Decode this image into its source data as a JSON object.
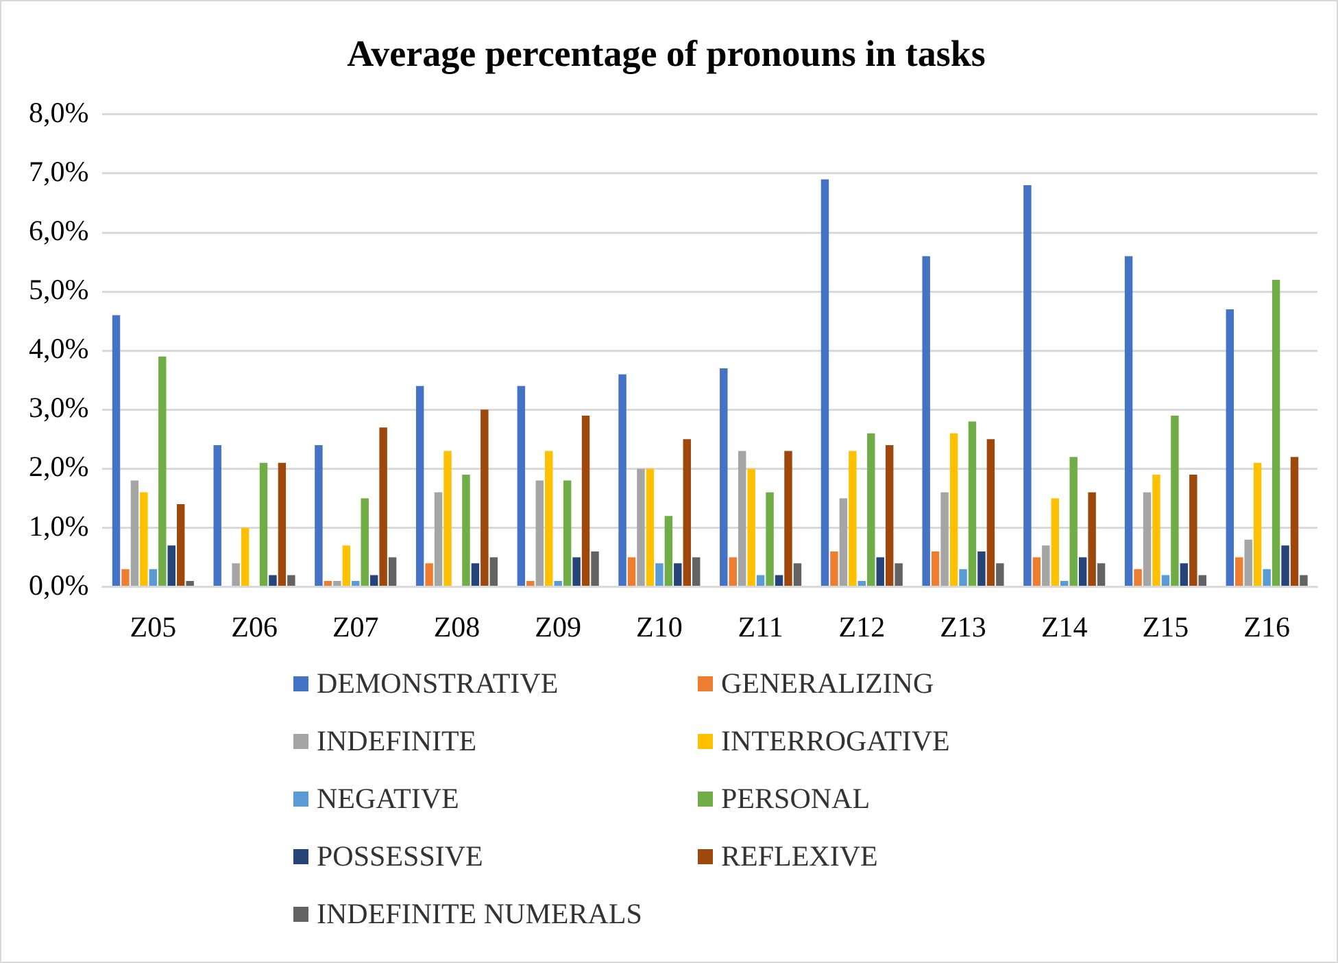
{
  "chart_data": {
    "type": "bar",
    "title": "Average percentage of pronouns in tasks",
    "categories": [
      "Z05",
      "Z06",
      "Z07",
      "Z08",
      "Z09",
      "Z10",
      "Z11",
      "Z12",
      "Z13",
      "Z14",
      "Z15",
      "Z16"
    ],
    "series": [
      {
        "name": "DEMONSTRATIVE",
        "color": "#4472c4",
        "values": [
          4.6,
          2.4,
          2.4,
          3.4,
          3.4,
          3.6,
          3.7,
          6.9,
          5.6,
          6.8,
          5.6,
          4.7
        ]
      },
      {
        "name": "GENERALIZING",
        "color": "#ed7d31",
        "values": [
          0.3,
          0,
          0.1,
          0.4,
          0.1,
          0.5,
          0.5,
          0.6,
          0.6,
          0.5,
          0.3,
          0.5
        ]
      },
      {
        "name": "INDEFINITE",
        "color": "#a5a5a5",
        "values": [
          1.8,
          0.4,
          0.1,
          1.6,
          1.8,
          2.0,
          2.3,
          1.5,
          1.6,
          0.7,
          1.6,
          0.8
        ]
      },
      {
        "name": "INTERROGATIVE",
        "color": "#ffc000",
        "values": [
          1.6,
          1.0,
          0.7,
          2.3,
          2.3,
          2.0,
          2.0,
          2.3,
          2.6,
          1.5,
          1.9,
          2.1
        ]
      },
      {
        "name": "NEGATIVE",
        "color": "#5b9bd5",
        "values": [
          0.3,
          0,
          0.1,
          0,
          0.1,
          0.4,
          0.2,
          0.1,
          0.3,
          0.1,
          0.2,
          0.3
        ]
      },
      {
        "name": "PERSONAL",
        "color": "#70ad47",
        "values": [
          3.9,
          2.1,
          1.5,
          1.9,
          1.8,
          1.2,
          1.6,
          2.6,
          2.8,
          2.2,
          2.9,
          5.2
        ]
      },
      {
        "name": "POSSESSIVE",
        "color": "#264478",
        "values": [
          0.7,
          0.2,
          0.2,
          0.4,
          0.5,
          0.4,
          0.2,
          0.5,
          0.6,
          0.5,
          0.4,
          0.7
        ]
      },
      {
        "name": "REFLEXIVE",
        "color": "#9e480e",
        "values": [
          1.4,
          2.1,
          2.7,
          3.0,
          2.9,
          2.5,
          2.3,
          2.4,
          2.5,
          1.6,
          1.9,
          2.2
        ]
      },
      {
        "name": "INDEFINITE NUMERALS",
        "color": "#636363",
        "values": [
          0.1,
          0.2,
          0.5,
          0.5,
          0.6,
          0.5,
          0.4,
          0.4,
          0.4,
          0.4,
          0.2,
          0.2
        ]
      }
    ],
    "ylim": [
      0,
      8
    ],
    "yticks": [
      {
        "value": 0,
        "label": "0,0%"
      },
      {
        "value": 1,
        "label": "1,0%"
      },
      {
        "value": 2,
        "label": "2,0%"
      },
      {
        "value": 3,
        "label": "3,0%"
      },
      {
        "value": 4,
        "label": "4,0%"
      },
      {
        "value": 5,
        "label": "5,0%"
      },
      {
        "value": 6,
        "label": "6,0%"
      },
      {
        "value": 7,
        "label": "7,0%"
      },
      {
        "value": 8,
        "label": "8,0%"
      }
    ],
    "grid": "y",
    "legend": "bottom"
  }
}
